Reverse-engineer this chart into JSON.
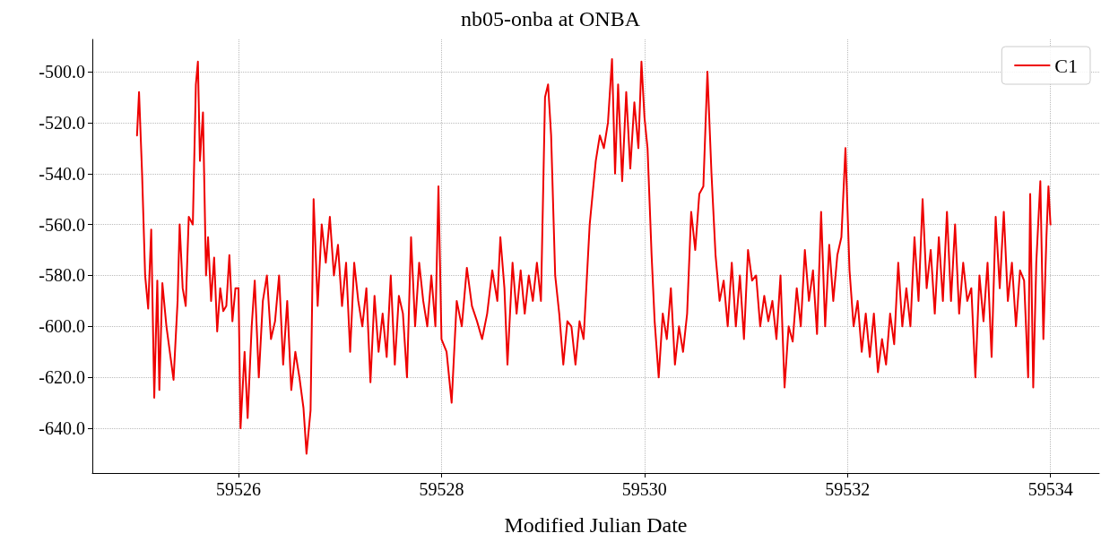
{
  "chart_data": {
    "type": "line",
    "title": "nb05-onba at ONBA",
    "xlabel": "Modified Julian Date",
    "xlim": [
      59524.56,
      59534.48
    ],
    "ylim": [
      -657.6,
      -487.3
    ],
    "xticks": [
      59526,
      59528,
      59530,
      59532,
      59534
    ],
    "yticks": [
      {
        "value": -640,
        "label": "-640.0"
      },
      {
        "value": -620,
        "label": "-620.0"
      },
      {
        "value": -600,
        "label": "-600.0"
      },
      {
        "value": -580,
        "label": "-580.0"
      },
      {
        "value": -560,
        "label": "-560.0"
      },
      {
        "value": -540,
        "label": "-540.0"
      },
      {
        "value": -520,
        "label": "-520.0"
      },
      {
        "value": -500,
        "label": "-500.0"
      }
    ],
    "grid": true,
    "legend": "top right",
    "marker": "none",
    "line_style": "solid",
    "series": [
      {
        "name": "C1",
        "color": "#ee0000",
        "x": [
          59525.0,
          59525.02,
          59525.05,
          59525.08,
          59525.11,
          59525.14,
          59525.17,
          59525.2,
          59525.22,
          59525.25,
          59525.29,
          59525.33,
          59525.36,
          59525.4,
          59525.42,
          59525.45,
          59525.48,
          59525.51,
          59525.55,
          59525.58,
          59525.6,
          59525.62,
          59525.65,
          59525.68,
          59525.7,
          59525.73,
          59525.76,
          59525.79,
          59525.82,
          59525.85,
          59525.88,
          59525.91,
          59525.94,
          59525.97,
          59526.0,
          59526.02,
          59526.06,
          59526.09,
          59526.13,
          59526.16,
          59526.2,
          59526.24,
          59526.28,
          59526.32,
          59526.36,
          59526.4,
          59526.44,
          59526.48,
          59526.52,
          59526.56,
          59526.6,
          59526.64,
          59526.67,
          59526.71,
          59526.74,
          59526.78,
          59526.82,
          59526.86,
          59526.9,
          59526.94,
          59526.98,
          59527.02,
          59527.06,
          59527.1,
          59527.14,
          59527.18,
          59527.22,
          59527.26,
          59527.3,
          59527.34,
          59527.38,
          59527.42,
          59527.46,
          59527.5,
          59527.54,
          59527.58,
          59527.62,
          59527.66,
          59527.7,
          59527.74,
          59527.78,
          59527.82,
          59527.86,
          59527.9,
          59527.94,
          59527.97,
          59528.0,
          59528.05,
          59528.1,
          59528.15,
          59528.2,
          59528.25,
          59528.3,
          59528.35,
          59528.4,
          59528.45,
          59528.5,
          59528.55,
          59528.58,
          59528.62,
          59528.65,
          59528.7,
          59528.74,
          59528.78,
          59528.82,
          59528.86,
          59528.9,
          59528.94,
          59528.98,
          59529.02,
          59529.05,
          59529.08,
          59529.12,
          59529.16,
          59529.2,
          59529.24,
          59529.28,
          59529.32,
          59529.36,
          59529.4,
          59529.46,
          59529.52,
          59529.56,
          59529.6,
          59529.64,
          59529.68,
          59529.71,
          59529.74,
          59529.78,
          59529.82,
          59529.86,
          59529.9,
          59529.94,
          59529.97,
          59530.0,
          59530.03,
          59530.07,
          59530.1,
          59530.14,
          59530.18,
          59530.22,
          59530.26,
          59530.3,
          59530.34,
          59530.38,
          59530.42,
          59530.46,
          59530.5,
          59530.54,
          59530.58,
          59530.62,
          59530.66,
          59530.7,
          59530.74,
          59530.78,
          59530.82,
          59530.86,
          59530.9,
          59530.94,
          59530.98,
          59531.02,
          59531.06,
          59531.1,
          59531.14,
          59531.18,
          59531.22,
          59531.26,
          59531.3,
          59531.34,
          59531.38,
          59531.42,
          59531.46,
          59531.5,
          59531.54,
          59531.58,
          59531.62,
          59531.66,
          59531.7,
          59531.74,
          59531.78,
          59531.82,
          59531.86,
          59531.9,
          59531.94,
          59531.98,
          59532.02,
          59532.06,
          59532.1,
          59532.14,
          59532.18,
          59532.22,
          59532.26,
          59532.3,
          59532.34,
          59532.38,
          59532.42,
          59532.46,
          59532.5,
          59532.54,
          59532.58,
          59532.62,
          59532.66,
          59532.7,
          59532.74,
          59532.78,
          59532.82,
          59532.86,
          59532.9,
          59532.94,
          59532.98,
          59533.02,
          59533.06,
          59533.1,
          59533.14,
          59533.18,
          59533.22,
          59533.26,
          59533.3,
          59533.34,
          59533.38,
          59533.42,
          59533.46,
          59533.5,
          59533.54,
          59533.58,
          59533.62,
          59533.66,
          59533.7,
          59533.74,
          59533.78,
          59533.8,
          59533.83,
          59533.86,
          59533.9,
          59533.93,
          59533.96,
          59533.98,
          59534.0
        ],
        "values": [
          -525,
          -508,
          -540,
          -580,
          -593,
          -562,
          -628,
          -582,
          -625,
          -583,
          -600,
          -612,
          -621,
          -590,
          -560,
          -585,
          -592,
          -557,
          -560,
          -505,
          -496,
          -535,
          -516,
          -580,
          -565,
          -590,
          -573,
          -602,
          -585,
          -594,
          -592,
          -572,
          -598,
          -585,
          -585,
          -640,
          -610,
          -636,
          -600,
          -582,
          -620,
          -590,
          -580,
          -605,
          -598,
          -580,
          -615,
          -590,
          -625,
          -610,
          -620,
          -632,
          -650,
          -633,
          -550,
          -592,
          -560,
          -575,
          -557,
          -580,
          -568,
          -592,
          -575,
          -610,
          -575,
          -590,
          -600,
          -585,
          -622,
          -588,
          -610,
          -595,
          -612,
          -580,
          -615,
          -588,
          -595,
          -620,
          -565,
          -600,
          -575,
          -590,
          -600,
          -580,
          -600,
          -545,
          -605,
          -610,
          -630,
          -590,
          -600,
          -577,
          -592,
          -598,
          -605,
          -595,
          -578,
          -590,
          -565,
          -585,
          -615,
          -575,
          -595,
          -578,
          -595,
          -580,
          -590,
          -575,
          -590,
          -510,
          -505,
          -525,
          -580,
          -595,
          -615,
          -598,
          -600,
          -615,
          -598,
          -605,
          -560,
          -535,
          -525,
          -530,
          -520,
          -495,
          -540,
          -505,
          -543,
          -508,
          -538,
          -512,
          -530,
          -496,
          -518,
          -530,
          -572,
          -598,
          -620,
          -595,
          -605,
          -585,
          -615,
          -600,
          -610,
          -595,
          -555,
          -570,
          -548,
          -545,
          -500,
          -540,
          -572,
          -590,
          -582,
          -600,
          -575,
          -600,
          -580,
          -605,
          -570,
          -582,
          -580,
          -600,
          -588,
          -598,
          -590,
          -605,
          -580,
          -624,
          -600,
          -606,
          -585,
          -600,
          -570,
          -590,
          -578,
          -603,
          -555,
          -600,
          -568,
          -590,
          -572,
          -565,
          -530,
          -578,
          -600,
          -590,
          -610,
          -595,
          -612,
          -595,
          -618,
          -605,
          -615,
          -595,
          -607,
          -575,
          -600,
          -585,
          -600,
          -565,
          -590,
          -550,
          -585,
          -570,
          -595,
          -565,
          -590,
          -555,
          -590,
          -560,
          -595,
          -575,
          -590,
          -585,
          -620,
          -580,
          -598,
          -575,
          -612,
          -557,
          -585,
          -555,
          -590,
          -575,
          -600,
          -578,
          -582,
          -620,
          -548,
          -624,
          -575,
          -543,
          -605,
          -565,
          -545,
          -560
        ]
      }
    ]
  }
}
